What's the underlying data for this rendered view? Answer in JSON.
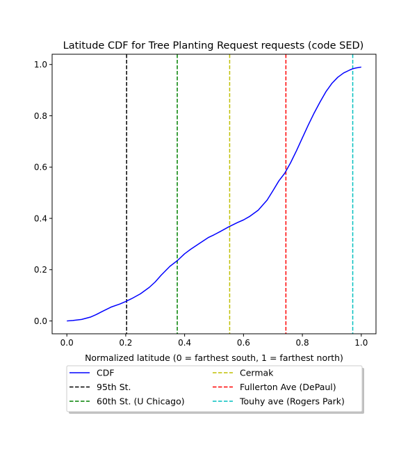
{
  "chart_data": {
    "type": "line",
    "title": "Latitude CDF for Tree Planting Request  requests (code SED)",
    "xlabel": "Normalized latitude (0 = farthest south, 1 = farthest north)",
    "ylabel": "",
    "xlim": [
      -0.05,
      1.05
    ],
    "ylim": [
      -0.05,
      1.04
    ],
    "xticks": [
      0.0,
      0.2,
      0.4,
      0.6,
      0.8,
      1.0
    ],
    "xtick_labels": [
      "0.0",
      "0.2",
      "0.4",
      "0.6",
      "0.8",
      "1.0"
    ],
    "yticks": [
      0.0,
      0.2,
      0.4,
      0.6,
      0.8,
      1.0
    ],
    "ytick_labels": [
      "0.0",
      "0.2",
      "0.4",
      "0.6",
      "0.8",
      "1.0"
    ],
    "grid": false,
    "legend_position": "below plot",
    "series": [
      {
        "name": "CDF",
        "color": "#0000ff",
        "style": "solid",
        "x": [
          0.0,
          0.02,
          0.05,
          0.08,
          0.1,
          0.12,
          0.15,
          0.18,
          0.2,
          0.22,
          0.25,
          0.28,
          0.3,
          0.32,
          0.35,
          0.375,
          0.4,
          0.42,
          0.45,
          0.48,
          0.5,
          0.52,
          0.55,
          0.58,
          0.6,
          0.62,
          0.65,
          0.68,
          0.7,
          0.72,
          0.74,
          0.76,
          0.78,
          0.8,
          0.82,
          0.84,
          0.86,
          0.88,
          0.9,
          0.92,
          0.94,
          0.96,
          0.97,
          0.98,
          1.0
        ],
        "y": [
          0.0,
          0.002,
          0.006,
          0.015,
          0.025,
          0.037,
          0.054,
          0.066,
          0.076,
          0.087,
          0.106,
          0.131,
          0.152,
          0.178,
          0.213,
          0.235,
          0.262,
          0.279,
          0.302,
          0.325,
          0.336,
          0.348,
          0.367,
          0.384,
          0.394,
          0.407,
          0.432,
          0.471,
          0.508,
          0.546,
          0.576,
          0.617,
          0.664,
          0.714,
          0.764,
          0.811,
          0.854,
          0.894,
          0.926,
          0.95,
          0.967,
          0.978,
          0.983,
          0.986,
          0.99
        ]
      },
      {
        "name": "95th St.",
        "color": "#000000",
        "style": "dashed",
        "x": 0.203
      },
      {
        "name": "60th St. (U Chicago)",
        "color": "#008000",
        "style": "dashed",
        "x": 0.375
      },
      {
        "name": "Cermak",
        "color": "#bfbf00",
        "style": "dashed",
        "x": 0.553
      },
      {
        "name": "Fullerton Ave (DePaul)",
        "color": "#ff0000",
        "style": "dashed",
        "x": 0.744
      },
      {
        "name": "Touhy ave (Rogers Park)",
        "color": "#00bfbf",
        "style": "dashed",
        "x": 0.971
      }
    ]
  }
}
